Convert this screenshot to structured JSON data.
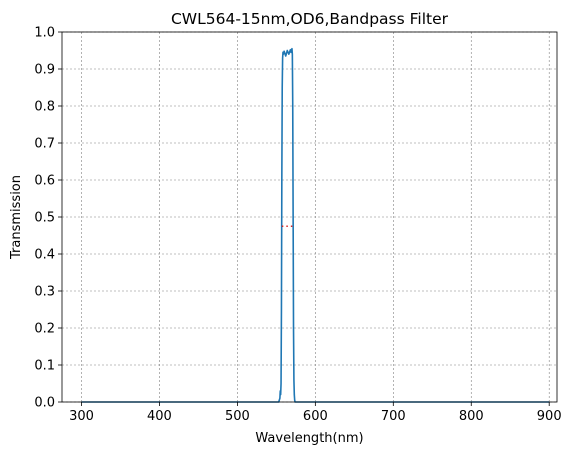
{
  "chart_data": {
    "type": "line",
    "title": "CWL564-15nm,OD6,Bandpass Filter",
    "xlabel": "Wavelength(nm)",
    "ylabel": "Transmission",
    "xlim": [
      275,
      910
    ],
    "ylim": [
      0,
      1.0
    ],
    "xticks": [
      300,
      400,
      500,
      600,
      700,
      800,
      900
    ],
    "yticks": [
      0.0,
      0.1,
      0.2,
      0.3,
      0.4,
      0.5,
      0.6,
      0.7,
      0.8,
      0.9,
      1.0
    ],
    "grid": true,
    "series": [
      {
        "color": "#1f77b4",
        "x": [
          300,
          400,
          500,
          540,
          553,
          554.5,
          555,
          555.5,
          556,
          556.5,
          557,
          557.5,
          558,
          558.5,
          559,
          560,
          562,
          564,
          566,
          568,
          569,
          570,
          570.5,
          571,
          571.5,
          572,
          572.5,
          573,
          573.5,
          574,
          576,
          600,
          700,
          800,
          900
        ],
        "y": [
          0.0,
          0.0,
          0.0,
          0.0,
          0.0,
          0.01,
          0.03,
          0.02,
          0.05,
          0.25,
          0.6,
          0.85,
          0.93,
          0.945,
          0.94,
          0.948,
          0.935,
          0.95,
          0.94,
          0.952,
          0.945,
          0.955,
          0.94,
          0.8,
          0.5,
          0.2,
          0.06,
          0.02,
          0.005,
          0.0,
          0.0,
          0.0,
          0.0,
          0.0,
          0.0
        ]
      }
    ],
    "annotations": [
      {
        "x": [
          557,
          571
        ],
        "y": 0.475,
        "color": "#d62728",
        "style": "dotted"
      }
    ]
  }
}
